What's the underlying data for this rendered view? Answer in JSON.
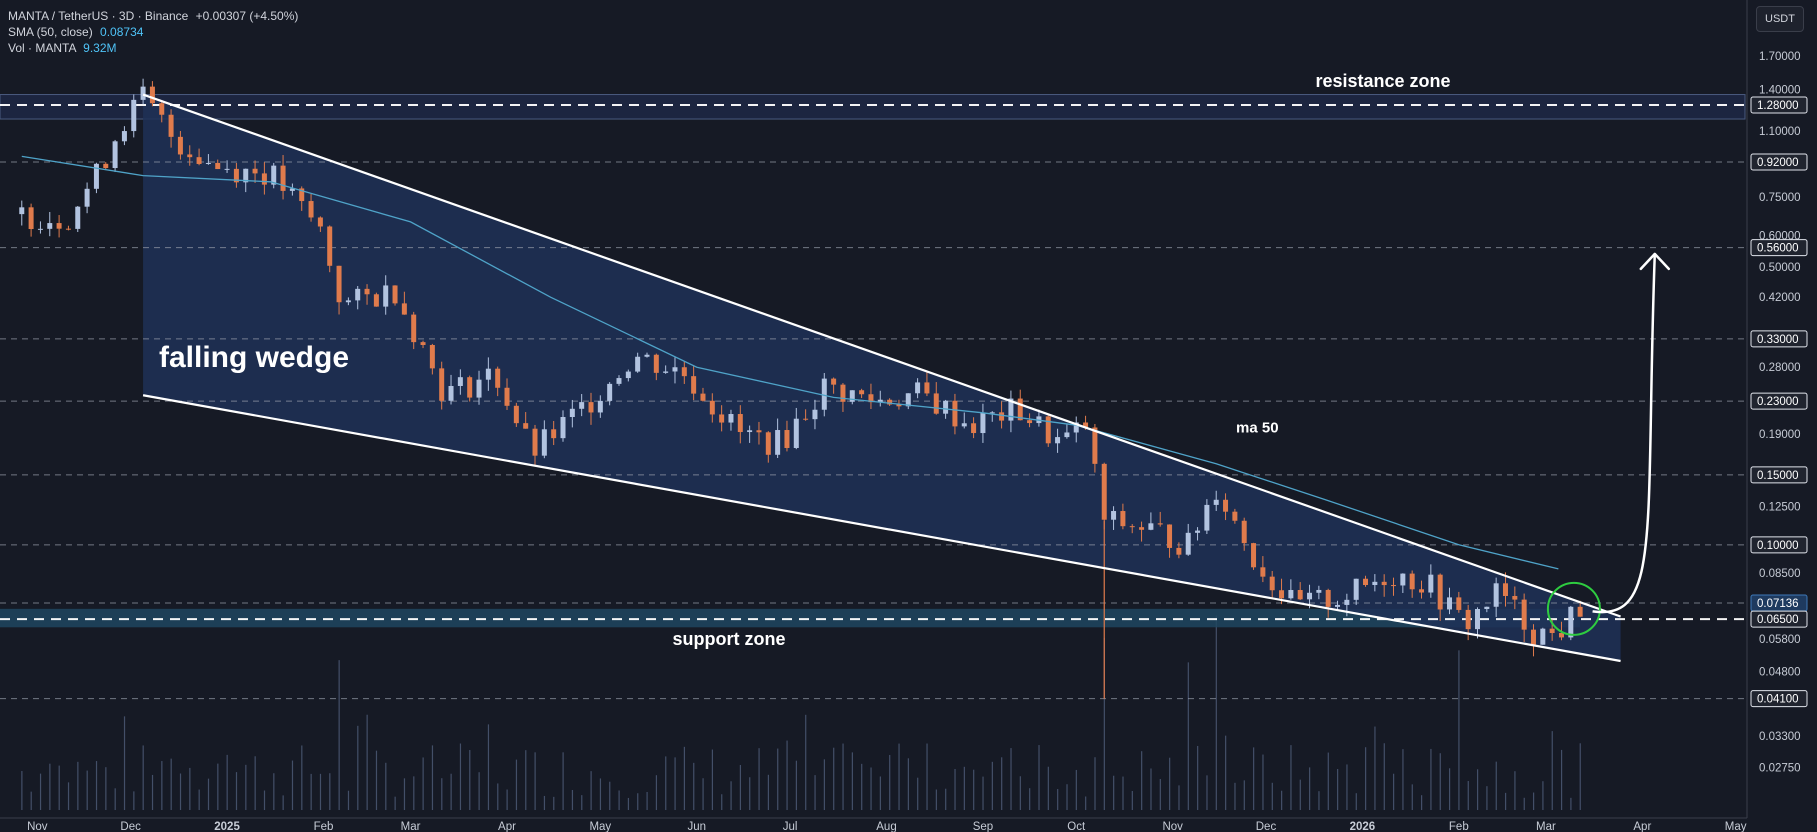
{
  "header": {
    "symbol_line": "MANTA / TetherUS · 3D · Binance",
    "change": "+0.00307 (+4.50%)",
    "sma_label": "SMA (50, close)",
    "sma_value": "0.08734",
    "vol_label": "Vol · MANTA",
    "vol_value": "9.32M"
  },
  "unit_button": "USDT",
  "chart_data": {
    "type": "candlestick",
    "y_scale": "log",
    "ylim": [
      0.025,
      2.0
    ],
    "y_ticks": [
      "1.70000",
      "1.40000",
      "1.10000",
      "0.92000",
      "0.75000",
      "0.60000",
      "0.50000",
      "0.42000",
      "0.33000",
      "0.28000",
      "0.23000",
      "0.19000",
      "0.15000",
      "0.12500",
      "0.10000",
      "0.08500",
      "0.05800",
      "0.04800",
      "0.04100",
      "0.03300",
      "0.02750"
    ],
    "highlighted_levels": [
      {
        "label": "1.28000",
        "value": 1.28
      },
      {
        "label": "0.92000",
        "value": 0.92
      },
      {
        "label": "0.56000",
        "value": 0.56
      },
      {
        "label": "0.33000",
        "value": 0.33
      },
      {
        "label": "0.23000",
        "value": 0.23
      },
      {
        "label": "0.15000",
        "value": 0.15
      },
      {
        "label": "0.10000",
        "value": 0.1
      },
      {
        "label": "0.07136",
        "value": 0.07136
      },
      {
        "label": "0.06500",
        "value": 0.065
      },
      {
        "label": "0.04100",
        "value": 0.041
      }
    ],
    "x_ticks": [
      {
        "label": "Nov",
        "date": "2024-11-01"
      },
      {
        "label": "Dec",
        "date": "2024-12-01"
      },
      {
        "label": "2025",
        "date": "2025-01-01"
      },
      {
        "label": "Feb",
        "date": "2025-02-01"
      },
      {
        "label": "Mar",
        "date": "2025-03-01"
      },
      {
        "label": "Apr",
        "date": "2025-04-01"
      },
      {
        "label": "May",
        "date": "2025-05-01"
      },
      {
        "label": "Jun",
        "date": "2025-06-01"
      },
      {
        "label": "Jul",
        "date": "2025-07-01"
      },
      {
        "label": "Aug",
        "date": "2025-08-01"
      },
      {
        "label": "Sep",
        "date": "2025-09-01"
      },
      {
        "label": "Oct",
        "date": "2025-10-01"
      },
      {
        "label": "Nov",
        "date": "2025-11-01"
      },
      {
        "label": "Dec",
        "date": "2025-12-01"
      },
      {
        "label": "2026",
        "date": "2026-01-01"
      },
      {
        "label": "Feb",
        "date": "2026-02-01"
      },
      {
        "label": "Mar",
        "date": "2026-03-01"
      },
      {
        "label": "Apr",
        "date": "2026-04-01"
      },
      {
        "label": "May",
        "date": "2026-05-01"
      }
    ],
    "price_path": [
      {
        "date": "2024-10-27",
        "close": 0.68
      },
      {
        "date": "2024-11-10",
        "close": 0.66
      },
      {
        "date": "2024-11-20",
        "close": 0.85
      },
      {
        "date": "2024-11-28",
        "close": 1.15
      },
      {
        "date": "2024-12-05",
        "close": 1.34
      },
      {
        "date": "2024-12-15",
        "close": 1.05
      },
      {
        "date": "2024-12-28",
        "close": 0.9
      },
      {
        "date": "2025-01-15",
        "close": 0.86
      },
      {
        "date": "2025-01-31",
        "close": 0.62
      },
      {
        "date": "2025-02-07",
        "close": 0.4
      },
      {
        "date": "2025-02-24",
        "close": 0.44
      },
      {
        "date": "2025-03-12",
        "close": 0.24
      },
      {
        "date": "2025-03-28",
        "close": 0.27
      },
      {
        "date": "2025-04-09",
        "close": 0.17
      },
      {
        "date": "2025-04-25",
        "close": 0.22
      },
      {
        "date": "2025-05-12",
        "close": 0.3
      },
      {
        "date": "2025-05-28",
        "close": 0.27
      },
      {
        "date": "2025-06-15",
        "close": 0.19
      },
      {
        "date": "2025-06-28",
        "close": 0.18
      },
      {
        "date": "2025-07-12",
        "close": 0.25
      },
      {
        "date": "2025-07-28",
        "close": 0.23
      },
      {
        "date": "2025-08-12",
        "close": 0.24
      },
      {
        "date": "2025-08-28",
        "close": 0.2
      },
      {
        "date": "2025-09-12",
        "close": 0.22
      },
      {
        "date": "2025-09-26",
        "close": 0.18
      },
      {
        "date": "2025-10-04",
        "close": 0.2
      },
      {
        "date": "2025-10-10",
        "close": 0.115
      },
      {
        "date": "2025-10-24",
        "close": 0.11
      },
      {
        "date": "2025-11-06",
        "close": 0.1
      },
      {
        "date": "2025-11-15",
        "close": 0.14
      },
      {
        "date": "2025-11-28",
        "close": 0.09
      },
      {
        "date": "2025-12-10",
        "close": 0.07
      },
      {
        "date": "2025-12-28",
        "close": 0.075
      },
      {
        "date": "2026-01-10",
        "close": 0.085
      },
      {
        "date": "2026-01-22",
        "close": 0.08
      },
      {
        "date": "2026-02-03",
        "close": 0.063
      },
      {
        "date": "2026-02-14",
        "close": 0.077
      },
      {
        "date": "2026-02-24",
        "close": 0.061
      },
      {
        "date": "2026-03-04",
        "close": 0.059
      },
      {
        "date": "2026-03-13",
        "close": 0.0713
      }
    ],
    "sma50_path": [
      {
        "date": "2024-10-27",
        "value": 0.95
      },
      {
        "date": "2024-12-05",
        "value": 0.85
      },
      {
        "date": "2025-01-15",
        "value": 0.82
      },
      {
        "date": "2025-03-01",
        "value": 0.65
      },
      {
        "date": "2025-04-15",
        "value": 0.42
      },
      {
        "date": "2025-06-01",
        "value": 0.28
      },
      {
        "date": "2025-07-15",
        "value": 0.235
      },
      {
        "date": "2025-09-01",
        "value": 0.215
      },
      {
        "date": "2025-10-01",
        "value": 0.2
      },
      {
        "date": "2025-11-15",
        "value": 0.16
      },
      {
        "date": "2025-12-20",
        "value": 0.13
      },
      {
        "date": "2026-02-01",
        "value": 0.1
      },
      {
        "date": "2026-03-05",
        "value": 0.087
      }
    ],
    "volume_peaks": [
      {
        "date": "2025-02-07",
        "value": 95
      },
      {
        "date": "2025-10-10",
        "value": 130
      },
      {
        "date": "2025-11-06",
        "value": 100
      },
      {
        "date": "2025-11-15",
        "value": 140
      },
      {
        "date": "2026-01-31",
        "value": 110
      }
    ],
    "annotations": {
      "resistance_label": "resistance zone",
      "support_label": "support zone",
      "wedge_label": "falling wedge",
      "ma_label": "ma 50"
    },
    "zones": {
      "resistance": [
        1.18,
        1.36
      ],
      "support": [
        0.062,
        0.069
      ]
    },
    "wedge": {
      "upper": [
        {
          "date": "2024-12-05",
          "value": 1.36
        },
        {
          "date": "2026-03-25",
          "value": 0.066
        }
      ],
      "lower": [
        {
          "date": "2024-12-05",
          "value": 0.238
        },
        {
          "date": "2026-03-25",
          "value": 0.051
        }
      ]
    },
    "projection": [
      {
        "date": "2026-03-16",
        "value": 0.068
      },
      {
        "date": "2026-04-05",
        "value": 0.54
      }
    ],
    "colors": {
      "up": "#b2c3e0",
      "down": "#e07b4c",
      "sma": "#4fa3c8",
      "wedge_fill": "#1e3157",
      "zone_fill": "#1f4660",
      "circle": "#2ecc40"
    }
  }
}
